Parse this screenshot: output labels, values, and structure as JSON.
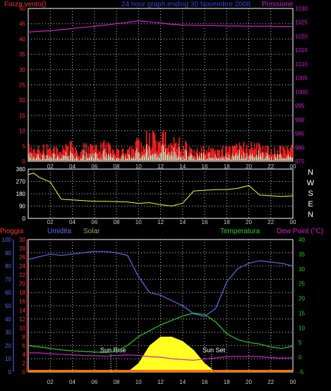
{
  "colors": {
    "background": "#000000",
    "frame": "#ffffff",
    "grid": "#c8c8c8",
    "axis_red": "#ff3030",
    "axis_magenta": "#d020d0",
    "axis_blue": "#5a6cf0",
    "axis_khaki": "#a89c60",
    "axis_green": "#20d020",
    "axis_yellow": "#ffff20",
    "white": "#ffffff"
  },
  "top_panel": {
    "left_title": "Forza vento()",
    "center_title": "24 hour graph ending 30 Novembre 2008",
    "right_title": "Pressione",
    "left_ticks": [
      "0",
      "5",
      "10",
      "15",
      "20",
      "25",
      "30",
      "35",
      "40",
      "45",
      "50"
    ],
    "right_ticks": [
      "975",
      "980",
      "985",
      "990",
      "995",
      "1000",
      "1005",
      "1010",
      "1015",
      "1020",
      "1025",
      "1030"
    ]
  },
  "middle_panel": {
    "left_ticks": [
      "0",
      "90",
      "180",
      "270",
      "360"
    ],
    "compass": [
      "N",
      "W",
      "S",
      "E",
      "N"
    ]
  },
  "bottom_panel": {
    "label_pioggia": "Pioggia",
    "label_umidita": "Umidita",
    "label_solar": "Solar",
    "label_temperatura": "Temperatura",
    "label_dewpoint": "Dew Point (°C)",
    "umidita_ticks": [
      "0",
      "10",
      "20",
      "30",
      "40",
      "50",
      "60",
      "70",
      "80",
      "90",
      "100"
    ],
    "pioggia_ticks": [
      "0",
      "2",
      "4",
      "6",
      "8",
      "10",
      "12",
      "14",
      "16",
      "18",
      "20",
      "22",
      "24",
      "26",
      "28",
      "30"
    ],
    "temp_ticks": [
      "-5",
      "0",
      "5",
      "10",
      "15",
      "20",
      "25",
      "30",
      "35",
      "40"
    ],
    "sunrise": "Sun Rise",
    "sunset": "Sun Set"
  },
  "x_ticks": [
    "02",
    "04",
    "06",
    "08",
    "10",
    "12",
    "14",
    "16",
    "18",
    "20",
    "22",
    "00"
  ],
  "chart_data": [
    {
      "type": "line",
      "title": "24 hour graph ending 30 Novembre 2008",
      "x": [
        0,
        1,
        2,
        3,
        4,
        5,
        6,
        7,
        8,
        9,
        10,
        11,
        12,
        13,
        14,
        15,
        16,
        17,
        18,
        19,
        20,
        21,
        22,
        23,
        24
      ],
      "series": [
        {
          "name": "Pressione",
          "values": [
            1021.5,
            1021.8,
            1022,
            1022.4,
            1022.8,
            1023.2,
            1023.6,
            1024,
            1024.5,
            1025,
            1025.5,
            1025.2,
            1024.8,
            1024.3,
            1024,
            1023.9,
            1023.8,
            1023.8,
            1023.7,
            1023.7,
            1023.6,
            1023.6,
            1023.6,
            1023.5,
            1023.5
          ]
        },
        {
          "name": "Forza vento()",
          "values": [
            5,
            5,
            6,
            4,
            6,
            5,
            5,
            6,
            4,
            4,
            7,
            9,
            9,
            8,
            6,
            5,
            4,
            4,
            5,
            5,
            6,
            5,
            4,
            5,
            5
          ]
        }
      ],
      "ylim_left": [
        0,
        50
      ],
      "ylim_right": [
        975,
        1030
      ]
    },
    {
      "type": "line",
      "x": [
        0,
        0.5,
        1,
        2,
        3,
        4,
        5,
        6,
        7,
        8,
        9,
        10,
        11,
        12,
        13,
        14,
        15,
        16,
        17,
        18,
        19,
        20,
        21,
        22,
        23,
        24
      ],
      "series": [
        {
          "values": [
            320,
            330,
            300,
            265,
            140,
            135,
            130,
            125,
            125,
            122,
            120,
            110,
            115,
            100,
            90,
            110,
            200,
            205,
            210,
            210,
            220,
            240,
            170,
            165,
            160,
            165
          ]
        }
      ],
      "ylim": [
        0,
        360
      ]
    },
    {
      "type": "line",
      "x": [
        0,
        1,
        2,
        3,
        4,
        5,
        6,
        7,
        8,
        9,
        10,
        11,
        12,
        13,
        14,
        15,
        16,
        17,
        18,
        19,
        20,
        21,
        22,
        23,
        24
      ],
      "series": [
        {
          "name": "Umidita",
          "values": [
            85,
            87,
            89,
            88,
            89,
            90,
            91,
            91,
            90,
            88,
            72,
            60,
            58,
            54,
            50,
            44,
            42,
            48,
            68,
            78,
            82,
            84,
            83,
            82,
            80
          ]
        },
        {
          "name": "Temperatura",
          "values": [
            4,
            3.5,
            3,
            2.5,
            2.2,
            2,
            1.8,
            1.6,
            2,
            4,
            7,
            9,
            11,
            12.5,
            14,
            15,
            14.5,
            12,
            8,
            6,
            5,
            4.5,
            3.5,
            3,
            3.8
          ]
        },
        {
          "name": "Dew Point (°C)",
          "values": [
            1.5,
            1.5,
            1.2,
            1,
            0.8,
            0.6,
            0.5,
            0.4,
            0.6,
            0.8,
            0.6,
            0.2,
            0,
            -0.5,
            -0.8,
            -1,
            -0.6,
            -0.2,
            0.2,
            0.3,
            0.3,
            0.2,
            -0.1,
            -0.3,
            -0.2
          ]
        },
        {
          "name": "Solar",
          "values": [
            0,
            0,
            0,
            0,
            0,
            0,
            0,
            0,
            0,
            0,
            2,
            6,
            8,
            8,
            7,
            5,
            2,
            0,
            0,
            0,
            0,
            0,
            0,
            0,
            0
          ]
        },
        {
          "name": "Pioggia",
          "values": [
            0,
            0,
            0,
            0,
            0,
            0,
            0,
            0,
            0,
            0,
            0,
            0,
            0,
            0,
            0,
            0,
            0,
            0,
            0,
            0,
            0,
            0,
            0,
            0,
            0
          ]
        }
      ],
      "ylim_humidity": [
        0,
        100
      ],
      "ylim_temperature": [
        -5,
        40
      ]
    }
  ]
}
